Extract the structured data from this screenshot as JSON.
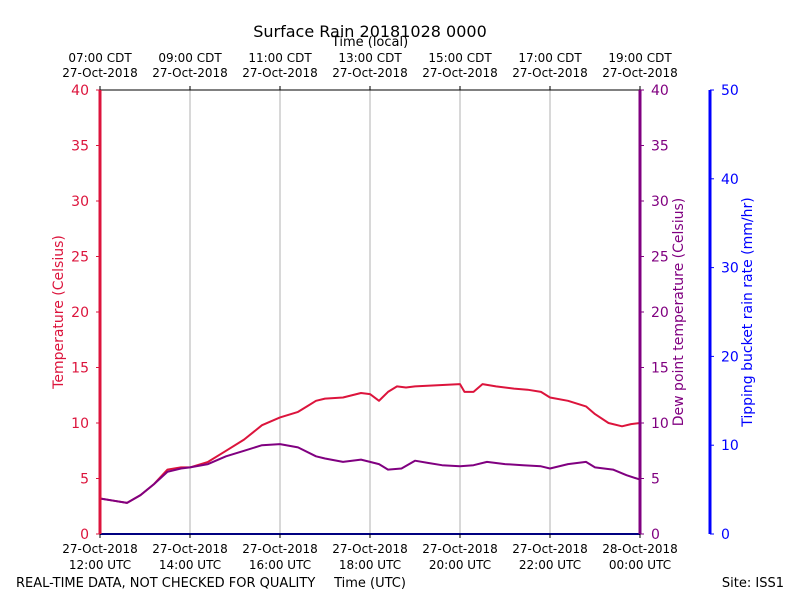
{
  "chart_data": {
    "type": "line",
    "title": "Surface Rain 20181028 0000",
    "top_axis_label": "Time (local)",
    "xlabel": "Time (UTC)",
    "footer_left": "REAL-TIME DATA, NOT CHECKED FOR QUALITY",
    "footer_right": "Site: ISS1",
    "x_range_hours_utc": [
      12,
      24
    ],
    "bottom_ticks": [
      {
        "hour": 12,
        "line1": "27-Oct-2018",
        "line2": "12:00 UTC"
      },
      {
        "hour": 14,
        "line1": "27-Oct-2018",
        "line2": "14:00 UTC"
      },
      {
        "hour": 16,
        "line1": "27-Oct-2018",
        "line2": "16:00 UTC"
      },
      {
        "hour": 18,
        "line1": "27-Oct-2018",
        "line2": "18:00 UTC"
      },
      {
        "hour": 20,
        "line1": "27-Oct-2018",
        "line2": "20:00 UTC"
      },
      {
        "hour": 22,
        "line1": "27-Oct-2018",
        "line2": "22:00 UTC"
      },
      {
        "hour": 24,
        "line1": "28-Oct-2018",
        "line2": "00:00 UTC"
      }
    ],
    "top_ticks": [
      {
        "hour": 12,
        "line1": "07:00 CDT",
        "line2": "27-Oct-2018"
      },
      {
        "hour": 14,
        "line1": "09:00 CDT",
        "line2": "27-Oct-2018"
      },
      {
        "hour": 16,
        "line1": "11:00 CDT",
        "line2": "27-Oct-2018"
      },
      {
        "hour": 18,
        "line1": "13:00 CDT",
        "line2": "27-Oct-2018"
      },
      {
        "hour": 20,
        "line1": "15:00 CDT",
        "line2": "27-Oct-2018"
      },
      {
        "hour": 22,
        "line1": "17:00 CDT",
        "line2": "27-Oct-2018"
      },
      {
        "hour": 24,
        "line1": "19:00 CDT",
        "line2": "27-Oct-2018"
      }
    ],
    "axes": [
      {
        "id": "temp",
        "label": "Temperature (Celsius)",
        "side": "left",
        "color": "#dc143c",
        "ylim": [
          0,
          40
        ],
        "ticks": [
          0,
          5,
          10,
          15,
          20,
          25,
          30,
          35,
          40
        ]
      },
      {
        "id": "dew",
        "label": "Dew point temperature (Celsius)",
        "side": "right",
        "color": "#800080",
        "ylim": [
          0,
          40
        ],
        "ticks": [
          0,
          5,
          10,
          15,
          20,
          25,
          30,
          35,
          40
        ]
      },
      {
        "id": "rain",
        "label": "Tipping bucket rain rate (mm/hr)",
        "side": "right-outer",
        "color": "#0000ff",
        "ylim": [
          0,
          50
        ],
        "ticks": [
          0,
          10,
          20,
          30,
          40,
          50
        ]
      }
    ],
    "series": [
      {
        "name": "Temperature",
        "axis": "temp",
        "color": "#dc143c",
        "x": [
          12.0,
          12.3,
          12.6,
          12.9,
          13.2,
          13.5,
          13.8,
          14.0,
          14.4,
          14.8,
          15.2,
          15.6,
          16.0,
          16.4,
          16.6,
          16.8,
          17.0,
          17.4,
          17.8,
          18.0,
          18.2,
          18.4,
          18.6,
          18.8,
          19.0,
          19.5,
          20.0,
          20.1,
          20.3,
          20.5,
          20.8,
          21.2,
          21.5,
          21.8,
          22.0,
          22.4,
          22.8,
          23.0,
          23.3,
          23.6,
          23.8,
          24.0
        ],
        "y": [
          3.2,
          3.0,
          2.8,
          3.5,
          4.5,
          5.8,
          6.0,
          6.0,
          6.5,
          7.5,
          8.5,
          9.8,
          10.5,
          11.0,
          11.5,
          12.0,
          12.2,
          12.3,
          12.7,
          12.6,
          12.0,
          12.8,
          13.3,
          13.2,
          13.3,
          13.4,
          13.5,
          12.8,
          12.8,
          13.5,
          13.3,
          13.1,
          13.0,
          12.8,
          12.3,
          12.0,
          11.5,
          10.8,
          10.0,
          9.7,
          9.9,
          10.0
        ]
      },
      {
        "name": "Dew point",
        "axis": "dew",
        "color": "#800080",
        "x": [
          12.0,
          12.3,
          12.6,
          12.9,
          13.2,
          13.5,
          13.8,
          14.0,
          14.4,
          14.8,
          15.2,
          15.6,
          16.0,
          16.4,
          16.8,
          17.0,
          17.4,
          17.8,
          18.0,
          18.2,
          18.4,
          18.7,
          19.0,
          19.3,
          19.6,
          20.0,
          20.3,
          20.6,
          21.0,
          21.4,
          21.8,
          22.0,
          22.4,
          22.8,
          23.0,
          23.4,
          23.7,
          24.0
        ],
        "y": [
          3.2,
          3.0,
          2.8,
          3.5,
          4.5,
          5.6,
          5.9,
          6.0,
          6.3,
          7.0,
          7.5,
          8.0,
          8.1,
          7.8,
          7.0,
          6.8,
          6.5,
          6.7,
          6.5,
          6.3,
          5.8,
          5.9,
          6.6,
          6.4,
          6.2,
          6.1,
          6.2,
          6.5,
          6.3,
          6.2,
          6.1,
          5.9,
          6.3,
          6.5,
          6.0,
          5.8,
          5.3,
          4.9
        ]
      },
      {
        "name": "Rain rate",
        "axis": "rain",
        "color": "#0000ff",
        "x": [
          12.0,
          24.0
        ],
        "y": [
          0,
          0
        ]
      }
    ]
  }
}
